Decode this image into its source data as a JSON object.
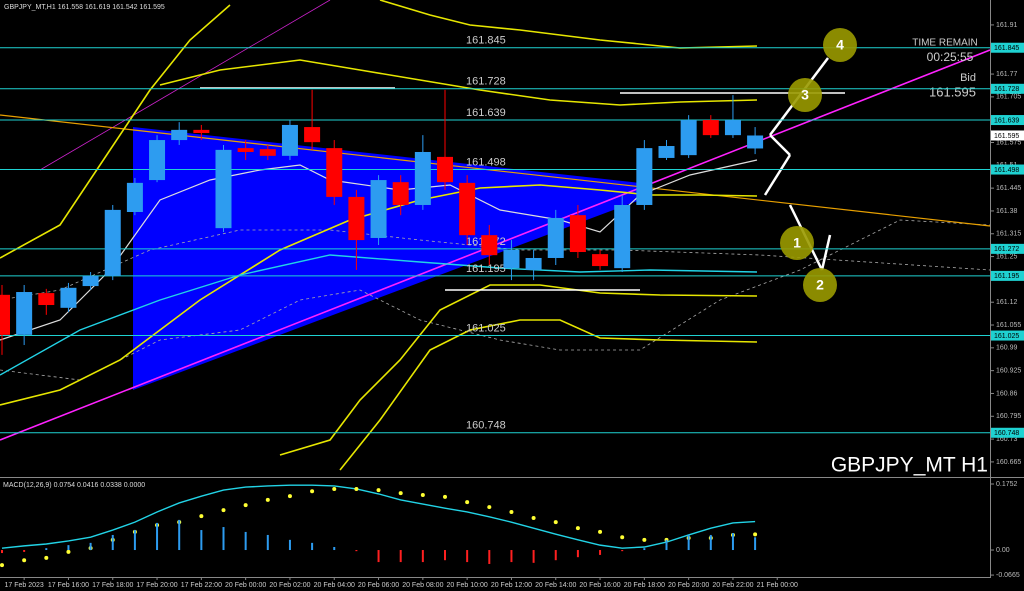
{
  "chart_data": [
    {
      "type": "candlestick",
      "title": "GBPJPY_MT,H1",
      "categories": [
        null,
        "17 Feb 2023",
        null,
        "17 Feb 16:00",
        null,
        "17 Feb 18:00",
        null,
        "17 Feb 20:00",
        null,
        "17 Feb 22:00",
        null,
        "20 Feb 00:00",
        null,
        "20 Feb 02:00",
        null,
        "20 Feb 04:00",
        null,
        "20 Feb 06:00",
        null,
        "20 Feb 08:00",
        null,
        "20 Feb 10:00",
        null,
        "20 Feb 12:00",
        null,
        "20 Feb 14:00",
        null,
        "20 Feb 16:00",
        null,
        "20 Feb 18:00",
        null,
        "20 Feb 20:00",
        null,
        "20 Feb 22:00",
        null,
        "21 Feb 00:00"
      ],
      "open": [
        161.141,
        161.027,
        161.146,
        161.104,
        161.166,
        161.195,
        161.377,
        161.468,
        161.582,
        161.611,
        161.331,
        161.559,
        161.556,
        161.537,
        161.619,
        161.559,
        161.42,
        161.303,
        161.462,
        161.397,
        161.534,
        161.46,
        161.311,
        161.217,
        161.212,
        161.246,
        161.368,
        161.257,
        161.217,
        161.397,
        161.531,
        161.539,
        161.639,
        161.596,
        161.558,
        null
      ],
      "high": [
        161.169,
        161.169,
        161.158,
        161.175,
        161.206,
        161.397,
        161.474,
        161.596,
        161.633,
        161.625,
        161.568,
        161.582,
        161.568,
        161.639,
        161.725,
        161.582,
        161.44,
        161.482,
        161.482,
        161.596,
        161.725,
        161.482,
        161.34,
        161.297,
        161.269,
        161.383,
        161.397,
        161.269,
        161.425,
        161.582,
        161.582,
        161.653,
        161.653,
        161.71,
        161.619,
        null
      ],
      "low": [
        160.97,
        160.998,
        161.084,
        161.092,
        161.155,
        161.183,
        161.368,
        161.462,
        161.568,
        161.582,
        161.32,
        161.525,
        161.525,
        161.525,
        161.554,
        161.397,
        161.212,
        161.283,
        161.368,
        161.383,
        161.44,
        161.283,
        161.226,
        161.183,
        161.183,
        161.226,
        161.246,
        161.212,
        161.206,
        161.383,
        161.525,
        161.531,
        161.588,
        161.588,
        161.542,
        null
      ],
      "close": [
        161.027,
        161.149,
        161.112,
        161.161,
        161.195,
        161.383,
        161.46,
        161.582,
        161.611,
        161.602,
        161.554,
        161.548,
        161.537,
        161.625,
        161.576,
        161.42,
        161.297,
        161.468,
        161.397,
        161.548,
        161.462,
        161.311,
        161.254,
        161.269,
        161.246,
        161.36,
        161.263,
        161.223,
        161.397,
        161.559,
        161.565,
        161.639,
        161.596,
        161.639,
        161.595,
        null
      ],
      "up_color": "#2d9cf0",
      "down_color": "#ff0000",
      "ylim": [
        160.622,
        161.981
      ],
      "yticks": [
        161.91,
        161.77,
        161.705,
        161.575,
        161.51,
        161.445,
        161.38,
        161.315,
        161.25,
        161.12,
        161.055,
        160.99,
        160.925,
        160.86,
        160.795,
        160.73,
        160.665
      ],
      "levels": [
        161.845,
        161.728,
        161.639,
        161.498,
        161.272,
        161.195,
        161.025,
        160.748
      ],
      "level_color": "#1fd2d2",
      "bid_label": "Bid",
      "bid": 161.595,
      "time_remain_label": "TIME REMAIN",
      "time_remain": "00:25:55",
      "watermark": "GBPJPY_MT H1",
      "wave_labels": [
        "4",
        "3",
        "1",
        "2"
      ]
    },
    {
      "type": "macd",
      "title": "MACD(12,26,9)",
      "readout": [
        0.0754,
        0.0416,
        0.0338,
        {
          "value": 0,
          "label": "0.0000"
        }
      ],
      "ylim": [
        -0.0716,
        0.1885
      ],
      "yticks": [
        0.1752,
        {
          "value": 0,
          "label": "0.00"
        },
        -0.0665
      ],
      "series": [
        {
          "style": "line",
          "color": "#22d3e6",
          "values": [
            0.005,
            0.011,
            0.016,
            0.024,
            0.034,
            0.053,
            0.074,
            0.101,
            0.125,
            0.143,
            0.159,
            0.167,
            0.17,
            0.172,
            0.172,
            0.17,
            0.162,
            0.149,
            0.133,
            0.122,
            0.111,
            0.101,
            0.088,
            0.074,
            0.058,
            0.042,
            0.027,
            0.013,
            0.005,
            0.008,
            0.021,
            0.04,
            0.058,
            0.072,
            0.0754,
            null
          ]
        },
        {
          "style": "dots",
          "color": "#ffff33",
          "values": [
            -0.04,
            -0.027,
            -0.021,
            -0.005,
            0.005,
            0.027,
            0.048,
            0.066,
            0.074,
            0.09,
            0.106,
            0.119,
            0.133,
            0.143,
            0.156,
            0.162,
            0.162,
            0.159,
            0.151,
            0.146,
            0.141,
            0.127,
            0.114,
            0.101,
            0.085,
            0.074,
            0.058,
            0.048,
            0.034,
            0.027,
            0.027,
            0.032,
            0.032,
            0.04,
            0.0416,
            null
          ]
        },
        {
          "style": "bar",
          "color": "#2d9cf0",
          "negative_color": "#ff2020",
          "values": [
            -0.008,
            -0.005,
            0.005,
            0.013,
            0.019,
            0.04,
            0.053,
            0.072,
            0.08,
            0.053,
            0.061,
            0.048,
            0.04,
            0.027,
            0.019,
            0.008,
            -0.003,
            -0.032,
            -0.032,
            -0.032,
            -0.027,
            -0.032,
            -0.037,
            -0.032,
            -0.034,
            -0.027,
            -0.019,
            -0.013,
            -0.003,
            0.005,
            0.027,
            0.04,
            0.04,
            0.045,
            0.0338,
            null
          ]
        }
      ]
    }
  ]
}
